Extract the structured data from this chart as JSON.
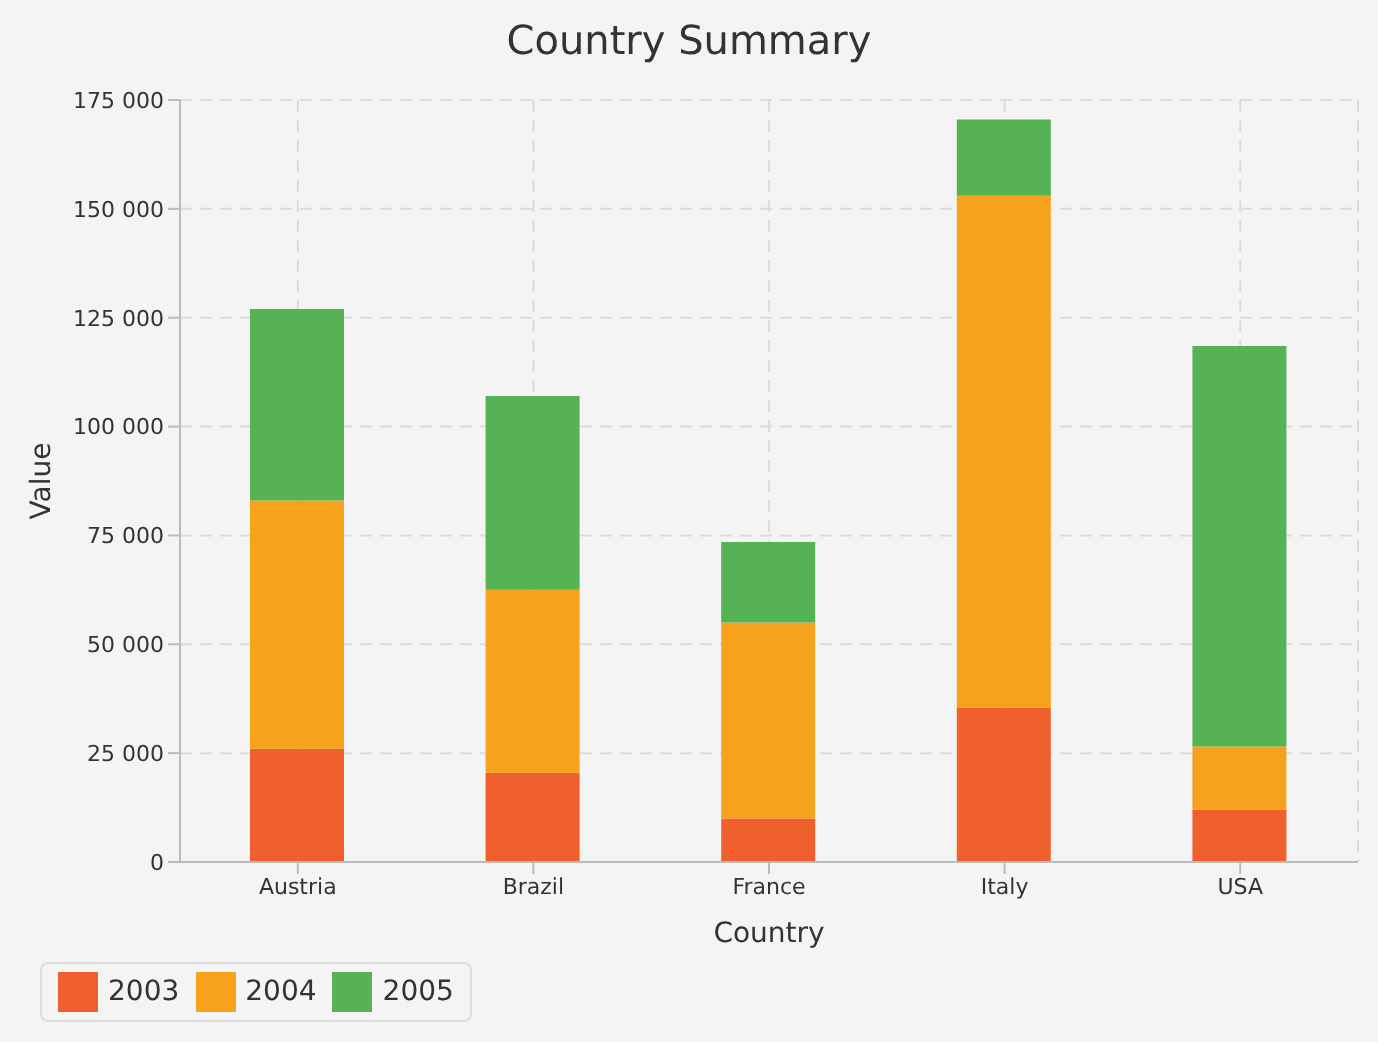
{
  "chart_data": {
    "type": "bar",
    "stacked": true,
    "title": "Country Summary",
    "xlabel": "Country",
    "ylabel": "Value",
    "categories": [
      "Austria",
      "Brazil",
      "France",
      "Italy",
      "USA"
    ],
    "series": [
      {
        "name": "2003",
        "color": "#f0602c",
        "values": [
          26000,
          20500,
          10000,
          35500,
          12000
        ]
      },
      {
        "name": "2004",
        "color": "#f7a21c",
        "values": [
          57000,
          42000,
          45000,
          117500,
          14500
        ]
      },
      {
        "name": "2005",
        "color": "#55b356",
        "values": [
          44000,
          44500,
          18500,
          17500,
          92000
        ]
      }
    ],
    "ylim": [
      0,
      175000
    ],
    "yticks": [
      {
        "value": 0,
        "label": "0"
      },
      {
        "value": 25000,
        "label": "25 000"
      },
      {
        "value": 50000,
        "label": "50 000"
      },
      {
        "value": 75000,
        "label": "75 000"
      },
      {
        "value": 100000,
        "label": "100 000"
      },
      {
        "value": 125000,
        "label": "125 000"
      },
      {
        "value": 150000,
        "label": "150 000"
      },
      {
        "value": 175000,
        "label": "175 000"
      }
    ],
    "grid": true,
    "legend": "bottom"
  }
}
